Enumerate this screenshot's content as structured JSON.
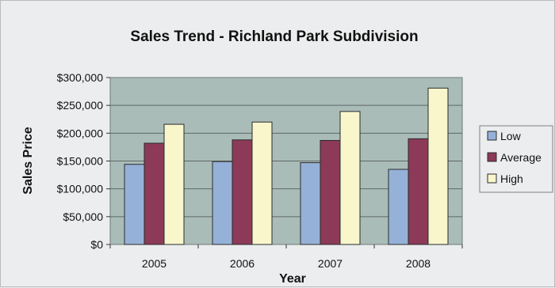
{
  "chart_data": {
    "type": "bar",
    "title": "Sales Trend - Richland Park Subdivision",
    "xlabel": "Year",
    "ylabel": "Sales Price",
    "categories": [
      "2005",
      "2006",
      "2007",
      "2008"
    ],
    "series": [
      {
        "name": "Low",
        "color": "#95b1d8",
        "values": [
          144000,
          149000,
          147000,
          135000
        ]
      },
      {
        "name": "Average",
        "color": "#8c3a57",
        "values": [
          182000,
          188000,
          187000,
          190000
        ]
      },
      {
        "name": "High",
        "color": "#f9f6cc",
        "values": [
          216000,
          220000,
          239000,
          281000
        ]
      }
    ],
    "ylim": [
      0,
      300000
    ],
    "yticks": [
      "$0",
      "$50,000",
      "$100,000",
      "$150,000",
      "$200,000",
      "$250,000",
      "$300,000"
    ],
    "grid": true,
    "plot_background": "#a9bcb8",
    "legend_position": "right"
  }
}
